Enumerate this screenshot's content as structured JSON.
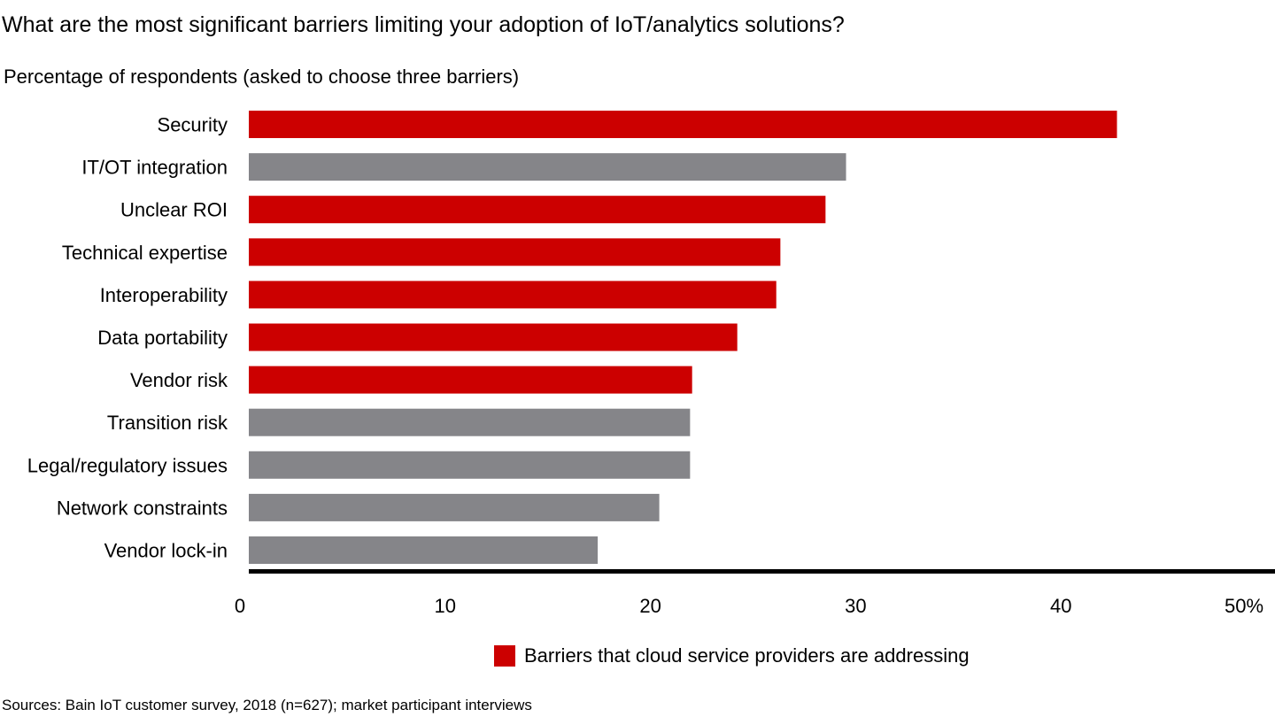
{
  "title": "What are the most significant barriers limiting your adoption of IoT/analytics solutions?",
  "subtitle": "Percentage of respondents (asked to choose three barriers)",
  "source": "Sources: Bain IoT customer survey, 2018 (n=627); market participant interviews",
  "colors": {
    "highlight": "#CC0000",
    "other": "#858589",
    "axis": "#000000"
  },
  "legend": {
    "label": "Barriers that cloud service providers are addressing",
    "position": "bottom"
  },
  "chart_data": {
    "type": "bar",
    "orientation": "horizontal",
    "categories": [
      "Security",
      "IT/OT integration",
      "Unclear ROI",
      "Technical expertise",
      "Interoperability",
      "Data portability",
      "Vendor risk",
      "Transition risk",
      "Legal/regulatory issues",
      "Network constraints",
      "Vendor lock-in"
    ],
    "values": [
      42.3,
      29.1,
      28.1,
      25.9,
      25.7,
      23.8,
      21.6,
      21.5,
      21.5,
      20.0,
      17.0
    ],
    "highlighted": [
      true,
      false,
      true,
      true,
      true,
      true,
      true,
      false,
      false,
      false,
      false
    ],
    "xlim": [
      0,
      50
    ],
    "xticks": [
      0,
      10,
      20,
      30,
      40,
      50
    ],
    "xtick_labels": [
      "0",
      "10",
      "20",
      "30",
      "40",
      "50%"
    ],
    "grid": false
  }
}
